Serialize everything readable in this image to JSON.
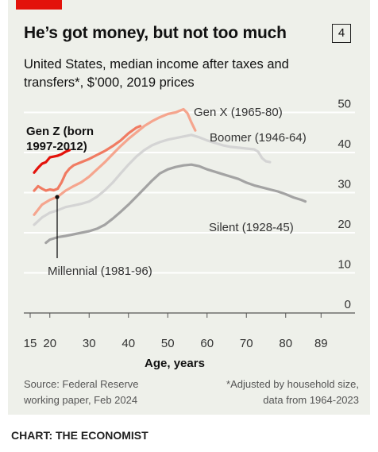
{
  "header": {
    "title": "He’s got money, but not too much",
    "chart_number": "4",
    "subtitle": "United States, median income after taxes and transfers*, $’000, 2019 prices"
  },
  "footer": {
    "source": "Source: Federal Reserve working paper, Feb 2024",
    "footnote": "*Adjusted by household size, data from 1964-2023",
    "credit": "CHART: THE ECONOMIST"
  },
  "colors": {
    "brand_red": "#e3120b",
    "gen_z": "#e3120b",
    "millennial": "#f07b62",
    "gen_x": "#f5a58e",
    "boomer": "#d4d4d4",
    "silent": "#a3a3a3"
  },
  "chart_data": {
    "type": "line",
    "xlabel": "Age, years",
    "ylabel": "",
    "xlim": [
      15,
      89
    ],
    "ylim": [
      0,
      50
    ],
    "x_ticks": [
      15,
      20,
      30,
      40,
      50,
      60,
      70,
      80,
      89
    ],
    "y_ticks": [
      0,
      10,
      20,
      30,
      40,
      50
    ],
    "y_axis_position": "right",
    "grid": true,
    "series": [
      {
        "name": "Silent (1928-45)",
        "color": "#a3a3a3",
        "points": [
          [
            19,
            17.5
          ],
          [
            20,
            18.3
          ],
          [
            22,
            18.9
          ],
          [
            24,
            19.2
          ],
          [
            26,
            19.6
          ],
          [
            28,
            20
          ],
          [
            30,
            20.4
          ],
          [
            32,
            21
          ],
          [
            34,
            22
          ],
          [
            36,
            23.5
          ],
          [
            38,
            25.2
          ],
          [
            40,
            27
          ],
          [
            42,
            29
          ],
          [
            44,
            31
          ],
          [
            46,
            33
          ],
          [
            48,
            34.8
          ],
          [
            50,
            35.8
          ],
          [
            52,
            36.4
          ],
          [
            54,
            36.8
          ],
          [
            56,
            37
          ],
          [
            58,
            36.6
          ],
          [
            60,
            35.8
          ],
          [
            62,
            35.2
          ],
          [
            64,
            34.6
          ],
          [
            66,
            34
          ],
          [
            68,
            33.4
          ],
          [
            70,
            32.5
          ],
          [
            72,
            31.8
          ],
          [
            74,
            31.3
          ],
          [
            76,
            30.8
          ],
          [
            78,
            30.3
          ],
          [
            80,
            29.6
          ],
          [
            82,
            28.8
          ],
          [
            84,
            28.2
          ],
          [
            85,
            27.8
          ]
        ]
      },
      {
        "name": "Boomer (1946-64)",
        "color": "#d4d4d4",
        "points": [
          [
            16,
            22
          ],
          [
            18,
            23.8
          ],
          [
            20,
            25
          ],
          [
            22,
            25.6
          ],
          [
            24,
            26.4
          ],
          [
            26,
            26.8
          ],
          [
            28,
            27.2
          ],
          [
            30,
            27.8
          ],
          [
            32,
            29
          ],
          [
            34,
            30.6
          ],
          [
            36,
            32.5
          ],
          [
            38,
            34.8
          ],
          [
            40,
            37
          ],
          [
            42,
            39
          ],
          [
            44,
            40.6
          ],
          [
            46,
            41.8
          ],
          [
            48,
            42.6
          ],
          [
            50,
            43.2
          ],
          [
            52,
            43.6
          ],
          [
            54,
            44
          ],
          [
            56,
            44.4
          ],
          [
            58,
            43.8
          ],
          [
            60,
            43
          ],
          [
            62,
            42.4
          ],
          [
            64,
            41.8
          ],
          [
            66,
            41.4
          ],
          [
            68,
            41.2
          ],
          [
            70,
            41
          ],
          [
            72,
            40.8
          ],
          [
            73,
            40.2
          ],
          [
            74,
            38.6
          ],
          [
            75,
            37.8
          ],
          [
            76,
            37.6
          ]
        ]
      },
      {
        "name": "Gen X (1965-80)",
        "color": "#f5a58e",
        "points": [
          [
            16,
            24.5
          ],
          [
            18,
            27
          ],
          [
            20,
            28.2
          ],
          [
            22,
            29
          ],
          [
            24,
            30.5
          ],
          [
            26,
            31.6
          ],
          [
            28,
            32.6
          ],
          [
            30,
            34
          ],
          [
            32,
            35.8
          ],
          [
            34,
            37.6
          ],
          [
            36,
            39.6
          ],
          [
            38,
            41.6
          ],
          [
            40,
            43.4
          ],
          [
            42,
            45
          ],
          [
            44,
            46.6
          ],
          [
            46,
            47.8
          ],
          [
            48,
            48.8
          ],
          [
            50,
            49.6
          ],
          [
            52,
            50
          ],
          [
            54,
            50.8
          ],
          [
            55,
            49.8
          ],
          [
            56,
            47.5
          ],
          [
            57,
            45.5
          ]
        ]
      },
      {
        "name": "Millennial (1981-96)",
        "color": "#f07b62",
        "points": [
          [
            16,
            30.5
          ],
          [
            17,
            31.6
          ],
          [
            18,
            31
          ],
          [
            19,
            30.5
          ],
          [
            20,
            30.8
          ],
          [
            21,
            30.6
          ],
          [
            22,
            31
          ],
          [
            23,
            32.6
          ],
          [
            24,
            34.8
          ],
          [
            25,
            36
          ],
          [
            26,
            36.8
          ],
          [
            28,
            37.6
          ],
          [
            30,
            38.4
          ],
          [
            32,
            39.4
          ],
          [
            34,
            40.4
          ],
          [
            36,
            41.6
          ],
          [
            38,
            43
          ],
          [
            40,
            44.8
          ],
          [
            42,
            46.2
          ],
          [
            43,
            46.6
          ]
        ]
      },
      {
        "name": "Gen Z (born 1997-2012)",
        "color": "#e3120b",
        "points": [
          [
            16,
            35
          ],
          [
            17,
            36.2
          ],
          [
            18,
            37.2
          ],
          [
            19,
            37.6
          ],
          [
            20,
            38.8
          ],
          [
            21,
            39
          ],
          [
            22,
            39.2
          ],
          [
            23,
            39.6
          ],
          [
            24,
            40.2
          ],
          [
            25,
            40.6
          ]
        ]
      }
    ],
    "annotations": {
      "gen_z": "Gen Z (born 1997-2012)",
      "gen_x": "Gen X (1965-80)",
      "boomer": "Boomer (1946-64)",
      "silent": "Silent (1928-45)",
      "millennial": "Millennial (1981-96)"
    }
  }
}
